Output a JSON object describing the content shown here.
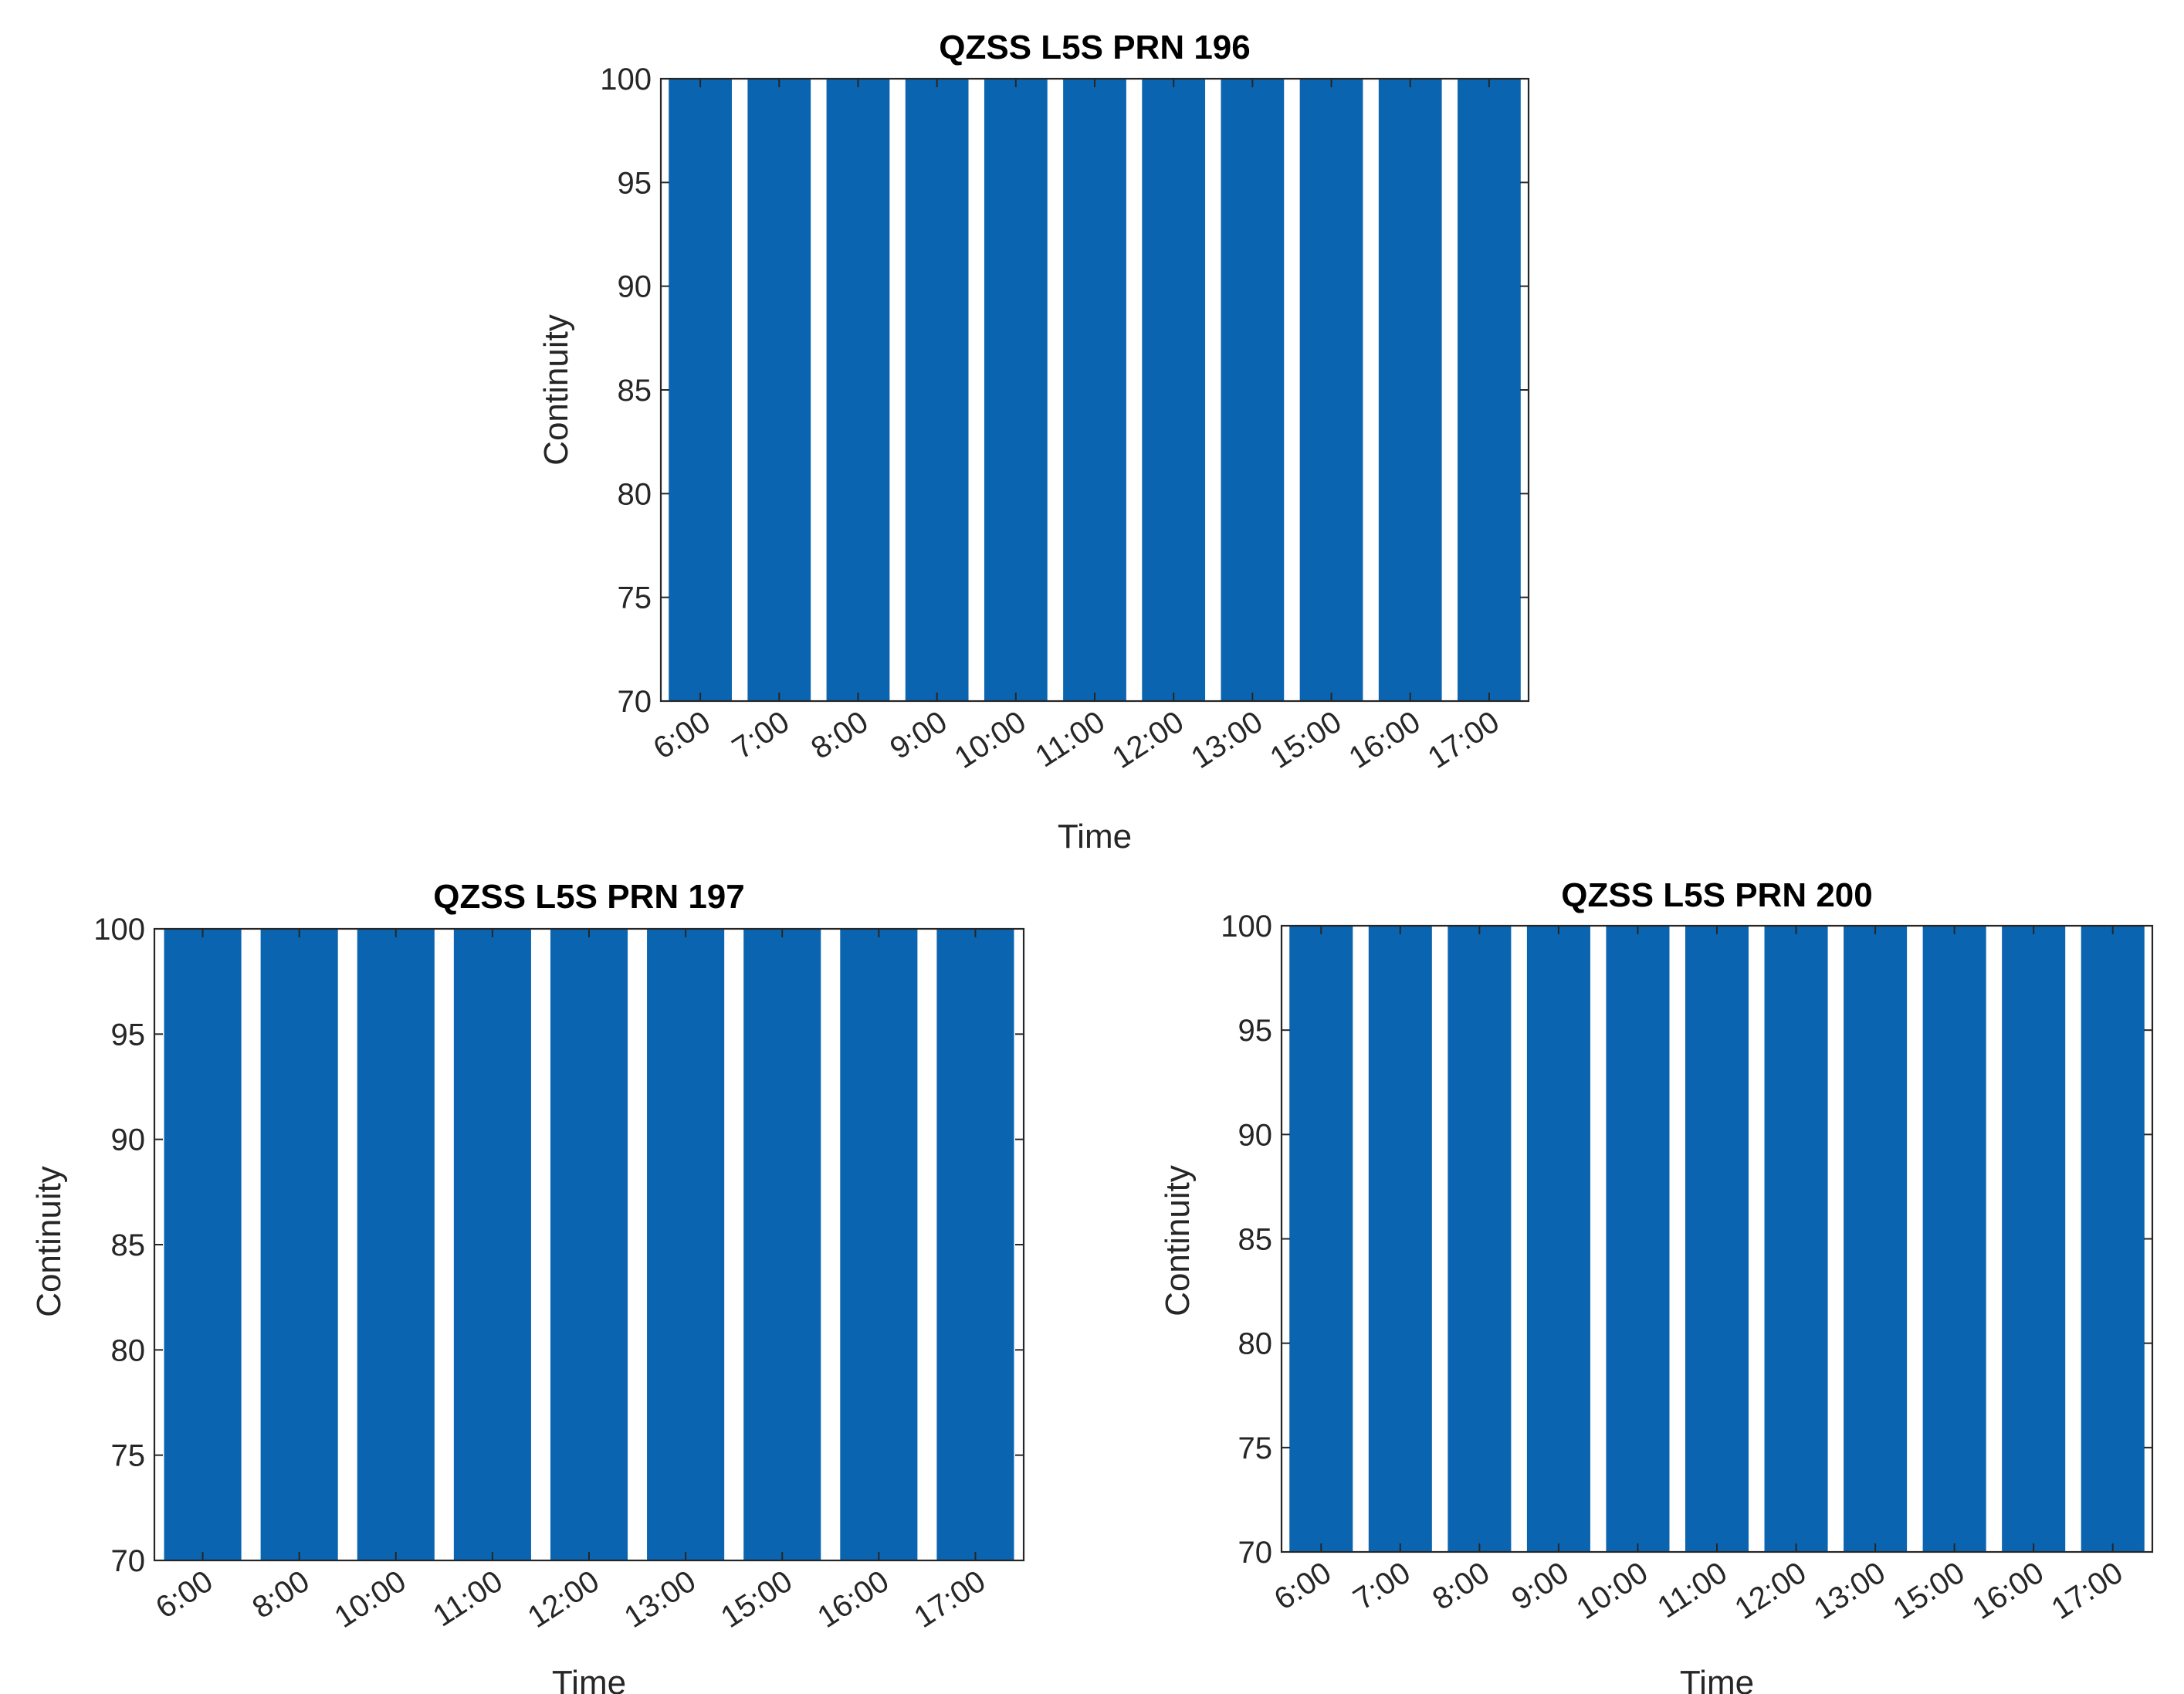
{
  "colors": {
    "bar": "#0a64b0",
    "axis": "#262626",
    "background": "#ffffff"
  },
  "chart_data": [
    {
      "type": "bar",
      "title": "QZSS L5S PRN 196",
      "xlabel": "Time",
      "ylabel": "Continuity",
      "categories": [
        "6:00",
        "7:00",
        "8:00",
        "9:00",
        "10:00",
        "11:00",
        "12:00",
        "13:00",
        "15:00",
        "16:00",
        "17:00"
      ],
      "values": [
        100,
        100,
        100,
        100,
        100,
        100,
        100,
        100,
        100,
        100,
        100
      ],
      "ylim": [
        70,
        100
      ],
      "yticks": [
        70,
        75,
        80,
        85,
        90,
        95,
        100
      ],
      "grid": false,
      "legend": "none"
    },
    {
      "type": "bar",
      "title": "QZSS L5S PRN 197",
      "xlabel": "Time",
      "ylabel": "Continuity",
      "categories": [
        "6:00",
        "8:00",
        "10:00",
        "11:00",
        "12:00",
        "13:00",
        "15:00",
        "16:00",
        "17:00"
      ],
      "values": [
        100,
        100,
        100,
        100,
        100,
        100,
        100,
        100,
        100
      ],
      "ylim": [
        70,
        100
      ],
      "yticks": [
        70,
        75,
        80,
        85,
        90,
        95,
        100
      ],
      "grid": false,
      "legend": "none"
    },
    {
      "type": "bar",
      "title": "QZSS L5S PRN 200",
      "xlabel": "Time",
      "ylabel": "Continuity",
      "categories": [
        "6:00",
        "7:00",
        "8:00",
        "9:00",
        "10:00",
        "11:00",
        "12:00",
        "13:00",
        "15:00",
        "16:00",
        "17:00"
      ],
      "values": [
        100,
        100,
        100,
        100,
        100,
        100,
        100,
        100,
        100,
        100,
        100
      ],
      "ylim": [
        70,
        100
      ],
      "yticks": [
        70,
        75,
        80,
        85,
        90,
        95,
        100
      ],
      "grid": false,
      "legend": "none"
    }
  ]
}
